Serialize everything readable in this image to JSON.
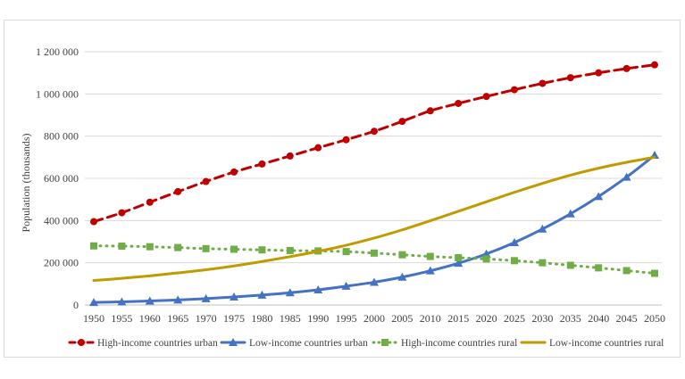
{
  "chart_data": {
    "type": "line",
    "title": "",
    "xlabel": "",
    "ylabel": "Population (thousands)",
    "x": [
      1950,
      1955,
      1960,
      1965,
      1970,
      1975,
      1980,
      1985,
      1990,
      1995,
      2000,
      2005,
      2010,
      2015,
      2020,
      2025,
      2030,
      2035,
      2040,
      2045,
      2050
    ],
    "x_tick_labels": [
      "1950",
      "1955",
      "1960",
      "1965",
      "1970",
      "1975",
      "1980",
      "1985",
      "1990",
      "1995",
      "2000",
      "2005",
      "2010",
      "2015",
      "2020",
      "2025",
      "2030",
      "2035",
      "2040",
      "2045",
      "2050"
    ],
    "ylim": [
      0,
      1200000
    ],
    "y_ticks": [
      0,
      200000,
      400000,
      600000,
      800000,
      1000000,
      1200000
    ],
    "y_tick_labels": [
      "0",
      "200 000",
      "400 000",
      "600 000",
      "800 000",
      "1 000 000",
      "1 200 000"
    ],
    "grid": true,
    "legend_position": "bottom",
    "series": [
      {
        "name": "High-income countries urban",
        "color": "#c00000",
        "line_style": "dashed",
        "marker": "circle",
        "values": [
          395000,
          437000,
          487000,
          537000,
          585000,
          630000,
          668000,
          706000,
          745000,
          783000,
          823000,
          870000,
          920000,
          955000,
          988000,
          1020000,
          1050000,
          1077000,
          1100000,
          1120000,
          1138000
        ]
      },
      {
        "name": "Low-income countries urban",
        "color": "#4472c4",
        "line_style": "solid",
        "marker": "triangle",
        "values": [
          12000,
          15000,
          19000,
          24000,
          30000,
          38000,
          47000,
          58000,
          72000,
          89000,
          108000,
          132000,
          162000,
          198000,
          242000,
          296000,
          360000,
          432000,
          514000,
          606000,
          710000
        ]
      },
      {
        "name": "High-income countries rural",
        "color": "#70ad47",
        "line_style": "dotted",
        "marker": "square",
        "values": [
          280000,
          279000,
          276000,
          272000,
          267000,
          264000,
          261000,
          258000,
          256000,
          253000,
          246000,
          238000,
          230000,
          224000,
          218000,
          210000,
          200000,
          188000,
          176000,
          163000,
          150000
        ]
      },
      {
        "name": "Low-income countries rural",
        "color": "#c09a00",
        "line_style": "solid",
        "marker": "none",
        "values": [
          116000,
          126000,
          138000,
          152000,
          167000,
          185000,
          206000,
          229000,
          254000,
          283000,
          317000,
          356000,
          399000,
          444000,
          489000,
          534000,
          576000,
          615000,
          648000,
          676000,
          700000
        ]
      }
    ]
  }
}
